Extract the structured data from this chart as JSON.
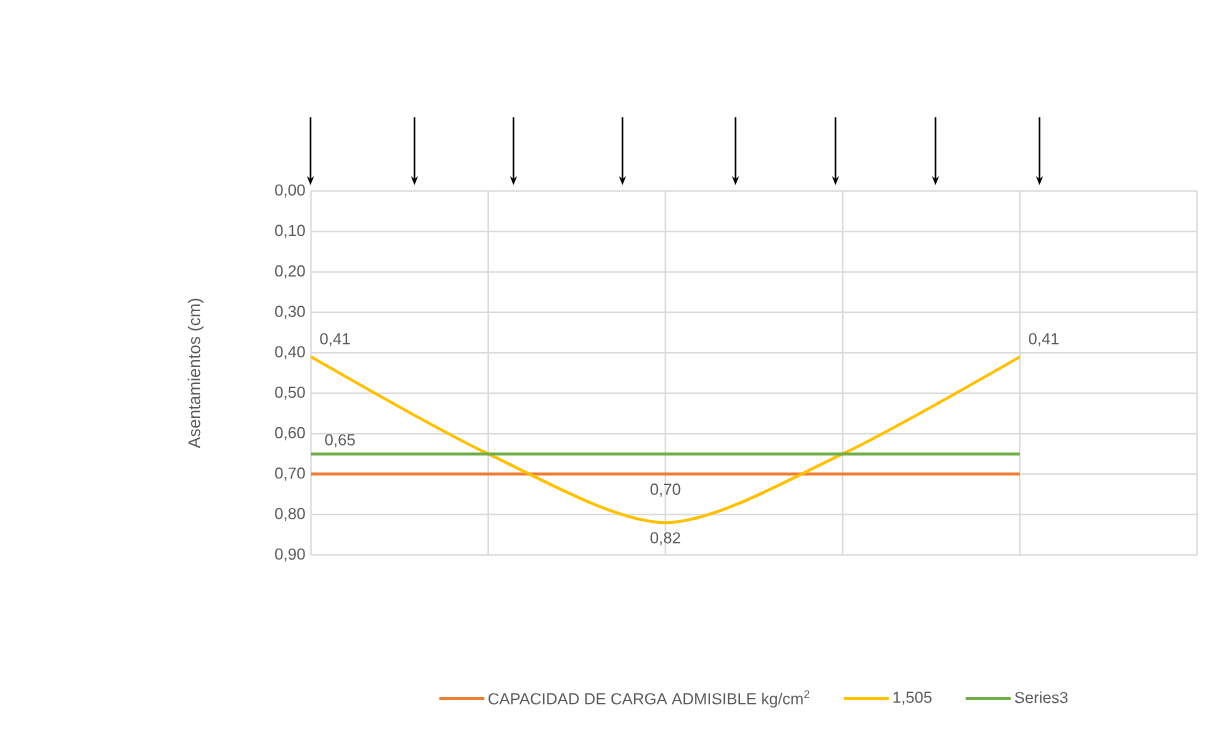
{
  "chart_data": {
    "type": "line",
    "ylabel": "Asentamientos (cm)",
    "categories": [
      null,
      null,
      null,
      null,
      null,
      null
    ],
    "series": [
      {
        "name": "CAPACIDAD DE CARGA ADMISIBLE kg/cm$^{2}$",
        "color": "#ed7d31",
        "values": [
          0.7,
          0.7,
          0.7,
          0.7,
          0.7,
          null
        ],
        "value_labels": [
          null,
          null,
          "0,70",
          null,
          null,
          null
        ]
      },
      {
        "name": "1,505",
        "color": "#ffc000",
        "values": [
          0.41,
          0.65,
          0.82,
          0.65,
          0.41,
          null
        ],
        "value_labels": [
          "0,41",
          null,
          "0,82",
          null,
          "0,41",
          null
        ]
      },
      {
        "name": "Series3",
        "color": "#70ad47",
        "values": [
          0.65,
          0.65,
          0.65,
          0.65,
          0.65,
          null
        ],
        "value_labels": [
          "0,65",
          null,
          null,
          null,
          null,
          null
        ]
      }
    ],
    "ylim": [
      0.9,
      0
    ],
    "yticks": [
      {
        "value": 0,
        "label": "0,00"
      },
      {
        "value": 0.1,
        "label": "0,10"
      },
      {
        "value": 0.2,
        "label": "0,20"
      },
      {
        "value": 0.3,
        "label": "0,30"
      },
      {
        "value": 0.4,
        "label": "0,40"
      },
      {
        "value": 0.5,
        "label": "0,50"
      },
      {
        "value": 0.6,
        "label": "0,60"
      },
      {
        "value": 0.7,
        "label": "0,70"
      },
      {
        "value": 0.8,
        "label": "0,80"
      },
      {
        "value": 0.9,
        "label": "0,90"
      }
    ],
    "grid": true,
    "legend": "bottom",
    "tick_labels": "y",
    "marker": "none",
    "line_style": "solid"
  }
}
